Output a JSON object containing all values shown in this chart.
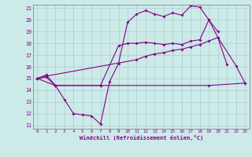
{
  "bg_color": "#cceae8",
  "grid_color": "#aacccc",
  "line_color": "#880088",
  "line_width": 0.8,
  "marker": "D",
  "marker_size": 2.0,
  "xlim": [
    -0.5,
    23.5
  ],
  "ylim": [
    10.7,
    21.3
  ],
  "xticks": [
    0,
    1,
    2,
    3,
    4,
    5,
    6,
    7,
    8,
    9,
    10,
    11,
    12,
    13,
    14,
    15,
    16,
    17,
    18,
    19,
    20,
    21,
    22,
    23
  ],
  "yticks": [
    11,
    12,
    13,
    14,
    15,
    16,
    17,
    18,
    19,
    20,
    21
  ],
  "xlabel": "Windchill (Refroidissement éolien,°C)",
  "series1_x": [
    0,
    1,
    2,
    3,
    4,
    5,
    6,
    7,
    8,
    9,
    10,
    11,
    12,
    13,
    14,
    15,
    16,
    17,
    18,
    19,
    20,
    21
  ],
  "series1_y": [
    15.0,
    15.3,
    14.4,
    13.2,
    12.0,
    11.9,
    11.8,
    11.1,
    14.7,
    16.3,
    19.8,
    20.5,
    20.8,
    20.5,
    20.3,
    20.6,
    20.4,
    21.2,
    21.1,
    20.0,
    18.5,
    16.2
  ],
  "series2_x": [
    0,
    1,
    2,
    7,
    9,
    10,
    11,
    12,
    13,
    14,
    15,
    16,
    17,
    18,
    19,
    20
  ],
  "series2_y": [
    15.0,
    15.1,
    14.4,
    14.4,
    17.8,
    18.0,
    18.0,
    18.1,
    18.0,
    17.9,
    18.0,
    17.9,
    18.2,
    18.3,
    20.0,
    19.0
  ],
  "series3_x": [
    0,
    1,
    11,
    12,
    13,
    14,
    15,
    16,
    17,
    18,
    19,
    20,
    22,
    23
  ],
  "series3_y": [
    15.0,
    15.2,
    16.6,
    16.9,
    17.1,
    17.2,
    17.4,
    17.5,
    17.7,
    17.9,
    18.2,
    18.5,
    16.1,
    14.6
  ],
  "series4_x": [
    0,
    2,
    7,
    19,
    23
  ],
  "series4_y": [
    15.0,
    14.4,
    14.4,
    14.4,
    14.6
  ]
}
